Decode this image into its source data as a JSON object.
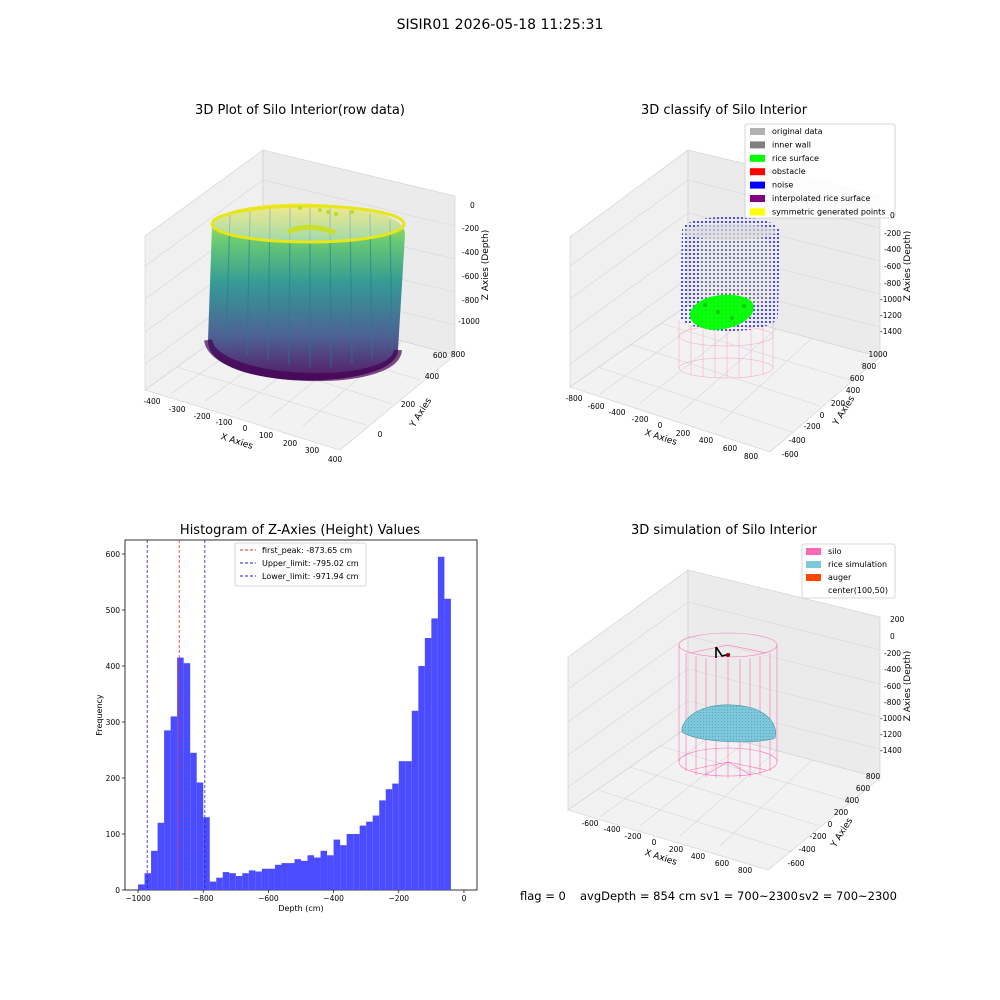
{
  "figure": {
    "suptitle": "SISIR01 2026-05-18 11:25:31",
    "footer": {
      "flag": "flag = 0",
      "avg_depth": "avgDepth = 854 cm",
      "sv1": "sv1 = 700~2300",
      "sv2": "sv2 = 700~2300"
    }
  },
  "colors": {
    "hist_bar": "#4b4bff",
    "first_peak_line": "#e8252a",
    "limit_lines": "#1f1fd0",
    "silo_wire": "#ff69b4",
    "rice_surface": "#00ff00",
    "noise": "#0000ff",
    "inner_wall": "#808080",
    "rice_sim": "#7ec8dc"
  },
  "panel1": {
    "title": "3D Plot of Silo Interior(row data)",
    "xlabel": "X Axies",
    "ylabel": "Y Axies",
    "zlabel": "Z Axies (Depth)",
    "xticks": [
      "-400",
      "-300",
      "-200",
      "-100",
      "0",
      "100",
      "200",
      "300",
      "400"
    ],
    "yticks": [
      "0",
      "200",
      "400",
      "600",
      "800"
    ],
    "zticks": [
      "0",
      "-200",
      "-400",
      "-600",
      "-800",
      "-1000"
    ]
  },
  "panel2": {
    "title": "3D classify of Silo Interior",
    "xlabel": "X Axies",
    "ylabel": "Y Axies",
    "zlabel": "Z Axies (Depth)",
    "xticks": [
      "-800",
      "-600",
      "-400",
      "-200",
      "0",
      "200",
      "400",
      "600",
      "800"
    ],
    "yticks": [
      "-600",
      "-400",
      "-200",
      "0",
      "200",
      "400",
      "600",
      "800",
      "1000"
    ],
    "zticks": [
      "0",
      "-200",
      "-400",
      "-600",
      "-800",
      "-1000",
      "-1200",
      "-1400"
    ],
    "legend": [
      {
        "label": "original data",
        "color": "#b0b0b0"
      },
      {
        "label": "inner wall",
        "color": "#808080"
      },
      {
        "label": "rice surface",
        "color": "#00ff00"
      },
      {
        "label": "obstacle",
        "color": "#ff0000"
      },
      {
        "label": "noise",
        "color": "#0000ff"
      },
      {
        "label": "interpolated rice surface",
        "color": "#800080"
      },
      {
        "label": "symmetric generated points",
        "color": "#ffff00"
      }
    ]
  },
  "panel4": {
    "title": "3D simulation of Silo Interior",
    "xlabel": "X Axies",
    "ylabel": "Y Axies",
    "zlabel": "Z Axies (Depth)",
    "xticks": [
      "-600",
      "-400",
      "-200",
      "0",
      "200",
      "400",
      "600",
      "800"
    ],
    "yticks": [
      "-600",
      "-400",
      "-200",
      "0",
      "200",
      "400",
      "600",
      "800"
    ],
    "zticks": [
      "200",
      "0",
      "-200",
      "-400",
      "-600",
      "-800",
      "-1000",
      "-1200",
      "-1400"
    ],
    "legend": [
      {
        "label": "silo",
        "color": "#ff69b4"
      },
      {
        "label": "rice simulation",
        "color": "#7ec8dc"
      },
      {
        "label": "auger",
        "color": "#ff4500"
      },
      {
        "label": "center(100,50)",
        "color": ""
      }
    ]
  },
  "chart_data": {
    "type": "bar",
    "title": "Histogram of Z-Axies (Height) Values",
    "xlabel": "Depth (cm)",
    "ylabel": "Frequency",
    "xlim": [
      -1040,
      40
    ],
    "ylim": [
      0,
      625
    ],
    "xticks": [
      -1000,
      -800,
      -600,
      -400,
      -200,
      0
    ],
    "yticks": [
      0,
      100,
      200,
      300,
      400,
      500,
      600
    ],
    "bin_start": -1000,
    "bin_width": 20,
    "values": [
      10,
      30,
      70,
      120,
      285,
      310,
      415,
      405,
      245,
      192,
      130,
      15,
      22,
      32,
      30,
      25,
      30,
      35,
      33,
      38,
      38,
      45,
      48,
      48,
      55,
      52,
      62,
      58,
      70,
      62,
      90,
      80,
      100,
      100,
      115,
      122,
      133,
      160,
      180,
      190,
      230,
      230,
      320,
      400,
      450,
      485,
      595,
      520
    ],
    "vlines": [
      {
        "name": "first_peak",
        "x": -873.65,
        "label": "first_peak: -873.65 cm",
        "style": "red"
      },
      {
        "name": "Upper_limit",
        "x": -795.02,
        "label": "Upper_limit: -795.02 cm",
        "style": "blue"
      },
      {
        "name": "Lower_limit",
        "x": -971.94,
        "label": "Lower_limit: -971.94 cm",
        "style": "blue"
      }
    ],
    "legend_position": "upper-center"
  }
}
